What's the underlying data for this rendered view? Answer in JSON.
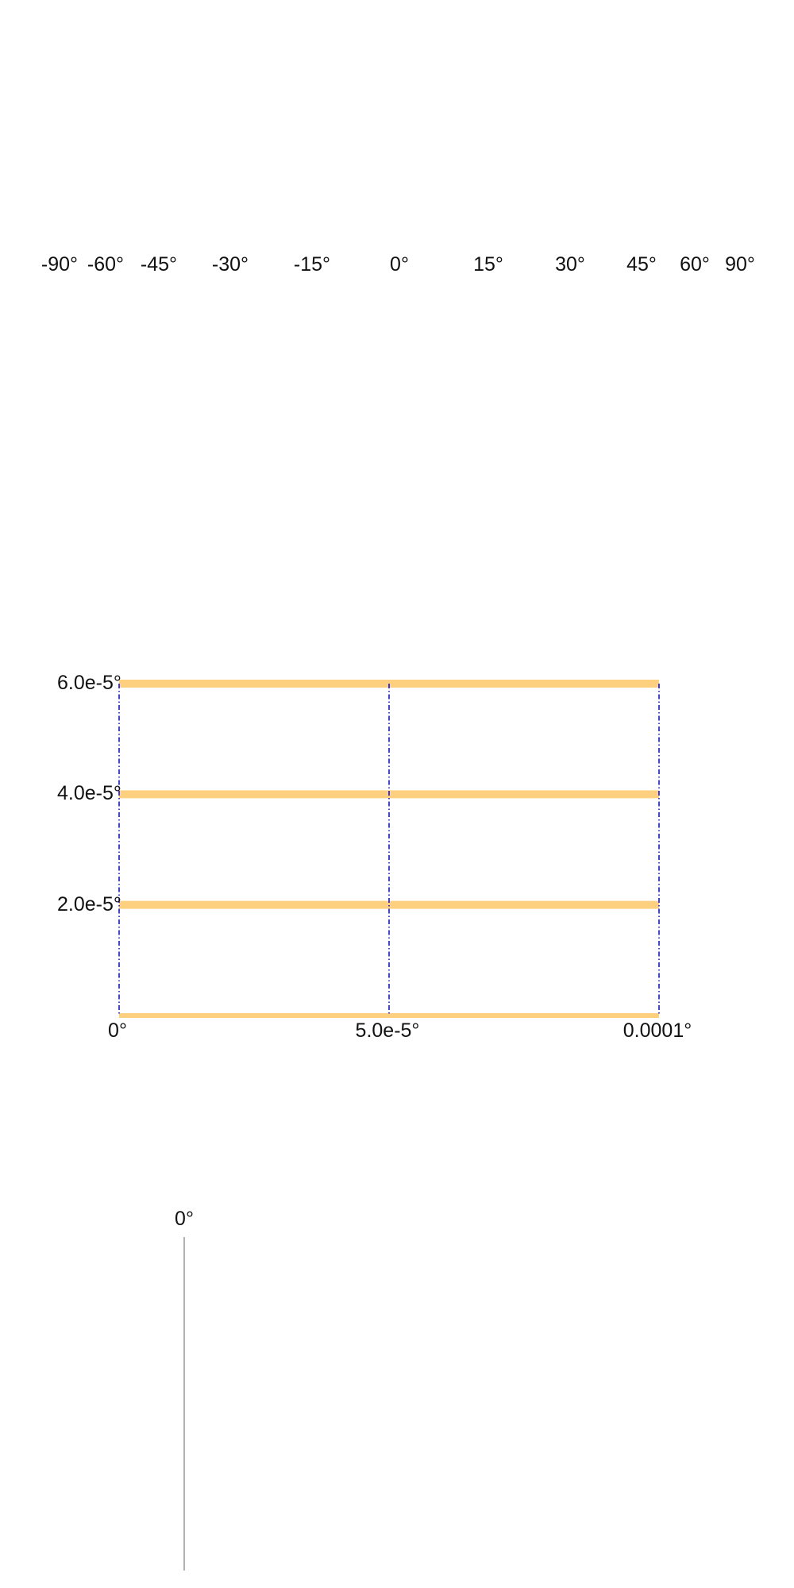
{
  "graticule_strip": {
    "longitude_labels": [
      "-90°",
      "-60°",
      "-45°",
      "-30°",
      "-15°",
      "0°",
      "15°",
      "30°",
      "45°",
      "60°",
      "90°"
    ]
  },
  "graticule_panel": {
    "latitude_labels": [
      "6.0e-5°",
      "4.0e-5°",
      "2.0e-5°"
    ],
    "longitude_labels": [
      "0°",
      "5.0e-5°",
      "0.0001°"
    ],
    "parallel_color": "#fdd080",
    "meridian_color": "#0000ff",
    "parallels_lat": [
      6e-05,
      4e-05,
      2e-05,
      0
    ],
    "meridians_lon": [
      0,
      5e-05,
      0.0001
    ],
    "lat_range": [
      0,
      6e-05
    ],
    "lon_range": [
      0,
      0.0001
    ]
  },
  "meridian_line": {
    "label": "0°",
    "color": "#999999"
  }
}
